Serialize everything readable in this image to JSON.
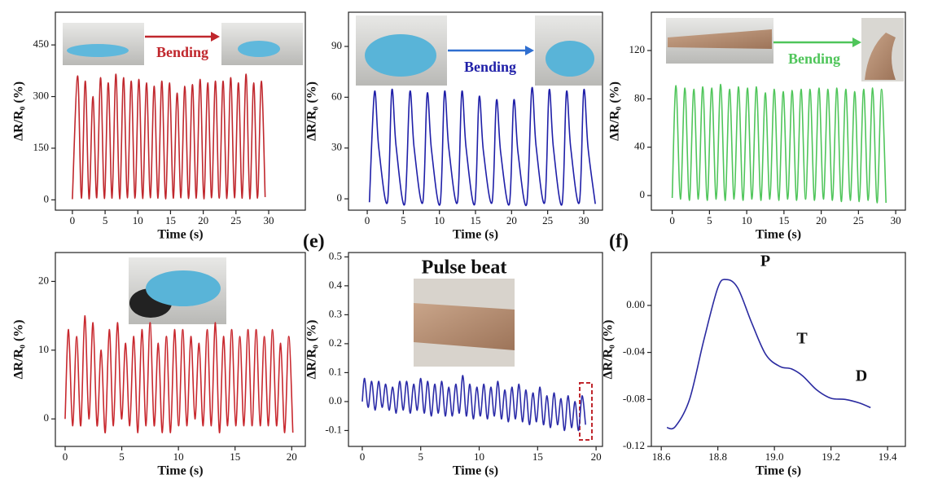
{
  "chart_data": [
    {
      "type": "line",
      "x_label": "Time (s)",
      "y_label": "ΔR/R₀ (%)",
      "color": "#c0272d",
      "annotations": [
        "Bending"
      ],
      "xlim": [
        -2.6,
        35.6
      ],
      "xticks": [
        0,
        5,
        10,
        15,
        20,
        25,
        30
      ],
      "ylim": [
        -30,
        545
      ],
      "yticks": [
        0,
        150,
        300,
        450
      ],
      "x": [
        0,
        0.8,
        1.38,
        1.97,
        2.55,
        3.14,
        3.72,
        4.31,
        4.89,
        5.48,
        6.06,
        6.65,
        7.23,
        7.82,
        8.4,
        8.99,
        9.57,
        10.16,
        10.74,
        11.33,
        11.91,
        12.5,
        13.08,
        13.67,
        14.25,
        14.84,
        15.42,
        16.01,
        16.59,
        17.18,
        17.76,
        18.35,
        18.93,
        19.52,
        20.1,
        20.69,
        21.27,
        21.86,
        22.44,
        23.03,
        23.61,
        24.2,
        24.78,
        25.37,
        25.95,
        26.54,
        27.12,
        27.71,
        28.29,
        28.88,
        29.46
      ],
      "values": [
        2,
        360,
        5,
        345,
        3,
        300,
        6,
        355,
        4,
        340,
        5,
        365,
        3,
        355,
        6,
        345,
        5,
        350,
        4,
        340,
        6,
        330,
        5,
        345,
        3,
        340,
        5,
        310,
        6,
        330,
        4,
        335,
        5,
        350,
        3,
        340,
        6,
        345,
        5,
        345,
        4,
        355,
        6,
        340,
        5,
        365,
        3,
        340,
        5,
        345,
        8
      ]
    },
    {
      "type": "line",
      "x_label": "Time (s)",
      "y_label": "ΔR/R₀ (%)",
      "color": "#1f1fa8",
      "annotations": [
        "Bending"
      ],
      "xlim": [
        -2.6,
        32.6
      ],
      "xticks": [
        0,
        5,
        10,
        15,
        20,
        25,
        30
      ],
      "ylim": [
        -6.7,
        110.2
      ],
      "yticks": [
        0,
        30,
        60,
        90
      ],
      "x": [
        0.3,
        1.0,
        1.6,
        2.8,
        3.4,
        4.0,
        5.2,
        5.9,
        6.5,
        7.7,
        8.3,
        8.9,
        10.1,
        10.7,
        11.3,
        12.5,
        13.1,
        13.7,
        14.9,
        15.5,
        16.1,
        17.3,
        17.9,
        18.5,
        19.7,
        20.3,
        20.9,
        22.1,
        22.8,
        23.4,
        24.6,
        25.2,
        25.8,
        27.0,
        27.6,
        28.2,
        29.4,
        30.0,
        30.6,
        31.6
      ],
      "values": [
        -2,
        63,
        30,
        -2,
        64,
        31,
        -3,
        63,
        30,
        -2,
        62,
        29,
        -3,
        63,
        30,
        -2,
        63,
        30,
        -3,
        60,
        28,
        -2,
        58,
        27,
        -3,
        58,
        27,
        -3,
        65,
        31,
        -2,
        64,
        30,
        -3,
        63,
        30,
        -2,
        64,
        30,
        -3
      ]
    },
    {
      "type": "line",
      "x_label": "Time (s)",
      "y_label": "ΔR/R₀ (%)",
      "color": "#4fc55a",
      "annotations": [
        "Bending"
      ],
      "xlim": [
        -2.8,
        31.3
      ],
      "xticks": [
        0,
        5,
        10,
        15,
        20,
        25,
        30
      ],
      "ylim": [
        -12.1,
        151.7
      ],
      "yticks": [
        0,
        40,
        80,
        120
      ],
      "x": [
        0,
        0.5,
        1.1,
        1.7,
        2.3,
        2.9,
        3.5,
        4.1,
        4.7,
        5.3,
        5.9,
        6.5,
        7.1,
        7.7,
        8.3,
        8.9,
        9.5,
        10.1,
        10.7,
        11.3,
        11.9,
        12.5,
        13.1,
        13.7,
        14.3,
        14.9,
        15.5,
        16.1,
        16.7,
        17.3,
        17.9,
        18.5,
        19.1,
        19.7,
        20.3,
        20.9,
        21.5,
        22.1,
        22.7,
        23.3,
        23.9,
        24.5,
        25.1,
        25.7,
        26.3,
        26.9,
        27.5,
        28.1,
        28.7
      ],
      "values": [
        -2,
        91,
        -3,
        89,
        -4,
        88,
        -3,
        90,
        -4,
        89,
        -3,
        92,
        -4,
        88,
        -3,
        90,
        -4,
        89,
        -3,
        90,
        -4,
        85,
        -3,
        88,
        -4,
        86,
        -3,
        87,
        -4,
        88,
        -3,
        88,
        -4,
        89,
        -3,
        88,
        -4,
        89,
        -5,
        88,
        -4,
        86,
        -5,
        88,
        -4,
        89,
        -6,
        88,
        -6
      ]
    },
    {
      "type": "line",
      "x_label": "Time (s)",
      "y_label": "ΔR/R₀ (%)",
      "color": "#c8282e",
      "xlim": [
        -0.86,
        21.2
      ],
      "xticks": [
        0,
        5,
        10,
        15,
        20
      ],
      "ylim": [
        -4,
        24.2
      ],
      "yticks": [
        0,
        10,
        20
      ],
      "x": [
        0,
        0.3,
        0.66,
        1.02,
        1.38,
        1.74,
        2.1,
        2.46,
        2.82,
        3.18,
        3.54,
        3.9,
        4.26,
        4.62,
        4.98,
        5.34,
        5.7,
        6.06,
        6.42,
        6.78,
        7.14,
        7.5,
        7.86,
        8.22,
        8.58,
        8.94,
        9.3,
        9.66,
        10.02,
        10.38,
        10.74,
        11.1,
        11.46,
        11.82,
        12.18,
        12.54,
        12.9,
        13.26,
        13.62,
        13.98,
        14.34,
        14.7,
        15.06,
        15.42,
        15.78,
        16.14,
        16.5,
        16.86,
        17.22,
        17.58,
        17.94,
        18.3,
        18.66,
        19.02,
        19.38,
        19.74,
        20.1
      ],
      "values": [
        0,
        13,
        -1,
        12,
        -1,
        15,
        0,
        14,
        -1,
        10,
        -2,
        13,
        -1,
        14,
        0,
        11,
        -1,
        12,
        -2,
        13,
        -1,
        14,
        -1,
        11,
        -2,
        12,
        -2,
        13,
        -1,
        13,
        -1,
        12,
        0,
        11,
        -1,
        13,
        -1,
        14,
        -2,
        12,
        -1,
        13,
        -1,
        12,
        -1,
        13,
        -1,
        13,
        -1,
        12,
        -1,
        13,
        -1,
        11,
        -2,
        12,
        -2
      ]
    },
    {
      "type": "line",
      "panel_label": "(e)",
      "x_label": "Time (s)",
      "y_label": "ΔR/R₀ (%)",
      "color": "#2b2ba8",
      "annotations": [
        "Pulse beat"
      ],
      "xlim": [
        -1.18,
        20.55
      ],
      "xticks": [
        0,
        5,
        10,
        15,
        20
      ],
      "ylim": [
        -0.155,
        0.515
      ],
      "yticks": [
        -0.1,
        {
          "value": 0,
          "label": "0.0"
        },
        0.1,
        0.2,
        0.3,
        0.4,
        0.5
      ],
      "x": [
        0,
        0.2,
        0.5,
        0.8,
        1.1,
        1.4,
        1.7,
        2.0,
        2.3,
        2.6,
        2.9,
        3.2,
        3.5,
        3.8,
        4.1,
        4.4,
        4.7,
        5.0,
        5.3,
        5.6,
        5.9,
        6.2,
        6.5,
        6.8,
        7.1,
        7.4,
        7.7,
        8.0,
        8.3,
        8.6,
        8.9,
        9.2,
        9.5,
        9.8,
        10.1,
        10.4,
        10.7,
        11.0,
        11.3,
        11.6,
        11.9,
        12.2,
        12.5,
        12.8,
        13.1,
        13.4,
        13.7,
        14.0,
        14.3,
        14.6,
        14.9,
        15.2,
        15.5,
        15.8,
        16.1,
        16.4,
        16.7,
        17.0,
        17.3,
        17.6,
        17.9,
        18.2,
        18.5,
        18.8,
        19.1
      ],
      "values": [
        0,
        0.08,
        -0.02,
        0.07,
        -0.03,
        0.07,
        -0.02,
        0.06,
        -0.03,
        0.05,
        -0.04,
        0.07,
        -0.03,
        0.07,
        -0.04,
        0.06,
        -0.03,
        0.08,
        -0.04,
        0.07,
        -0.05,
        0.06,
        -0.04,
        0.07,
        -0.05,
        0.05,
        -0.05,
        0.06,
        -0.04,
        0.09,
        -0.05,
        0.06,
        -0.06,
        0.05,
        -0.05,
        0.06,
        -0.06,
        0.05,
        -0.05,
        0.07,
        -0.06,
        0.04,
        -0.07,
        0.05,
        -0.06,
        0.06,
        -0.07,
        0.04,
        -0.08,
        0.03,
        -0.07,
        0.05,
        -0.08,
        0.02,
        -0.09,
        0.03,
        -0.08,
        0.01,
        -0.1,
        0.02,
        -0.09,
        0,
        -0.1,
        0.02,
        -0.08
      ]
    },
    {
      "type": "line",
      "panel_label": "(f)",
      "x_label": "Time (s)",
      "y_label": "ΔR/R₀ (%)",
      "color": "#2a2aa0",
      "annotations": [
        "P",
        "T",
        "D"
      ],
      "xlim": [
        18.565,
        19.463
      ],
      "xticks": [
        18.6,
        18.8,
        {
          "value": 19,
          "label": "19.0"
        },
        19.2,
        19.4
      ],
      "ylim": [
        -0.12,
        0.045
      ],
      "yticks": [
        {
          "value": 0,
          "label": "0.00"
        },
        {
          "value": -0.04,
          "label": "-0.04"
        },
        {
          "value": -0.08,
          "label": "-0.08"
        },
        {
          "value": -0.12,
          "label": "-0.12"
        }
      ],
      "x": [
        18.62,
        18.65,
        18.7,
        18.75,
        18.8,
        18.83,
        18.87,
        18.92,
        18.97,
        19.02,
        19.06,
        19.1,
        19.15,
        19.2,
        19.25,
        19.3,
        19.34
      ],
      "values": [
        -0.104,
        -0.103,
        -0.08,
        -0.03,
        0.015,
        0.022,
        0.015,
        -0.015,
        -0.042,
        -0.052,
        -0.054,
        -0.06,
        -0.072,
        -0.079,
        -0.08,
        -0.083,
        -0.087
      ]
    }
  ]
}
